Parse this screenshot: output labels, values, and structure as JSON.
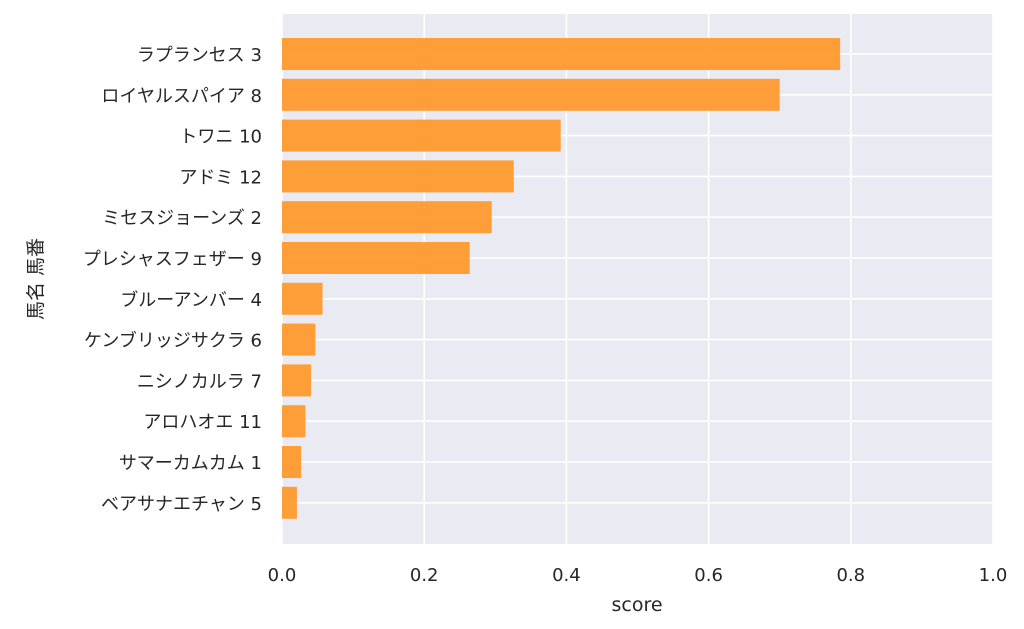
{
  "chart_data": {
    "type": "bar",
    "orientation": "horizontal",
    "categories": [
      "ラプランセス 3",
      "ロイヤルスパイア 8",
      "トワニ 10",
      "アドミ 12",
      "ミセスジョーンズ 2",
      "プレシャスフェザー 9",
      "ブルーアンバー 4",
      "ケンブリッジサクラ 6",
      "ニシノカルラ 7",
      "アロハオエ 11",
      "サマーカムカム 1",
      "ベアサナエチャン 5"
    ],
    "values": [
      0.785,
      0.7,
      0.392,
      0.326,
      0.295,
      0.264,
      0.057,
      0.047,
      0.041,
      0.033,
      0.027,
      0.021
    ],
    "xlabel": "score",
    "ylabel": "馬名 馬番",
    "xlim": [
      0.0,
      1.0
    ],
    "xticks": [
      "0.0",
      "0.2",
      "0.4",
      "0.6",
      "0.8",
      "1.0"
    ],
    "grid": true,
    "colors": {
      "bar": "#ff9a2e",
      "plot_background": "#eaeaf2",
      "grid": "#ffffff"
    }
  }
}
